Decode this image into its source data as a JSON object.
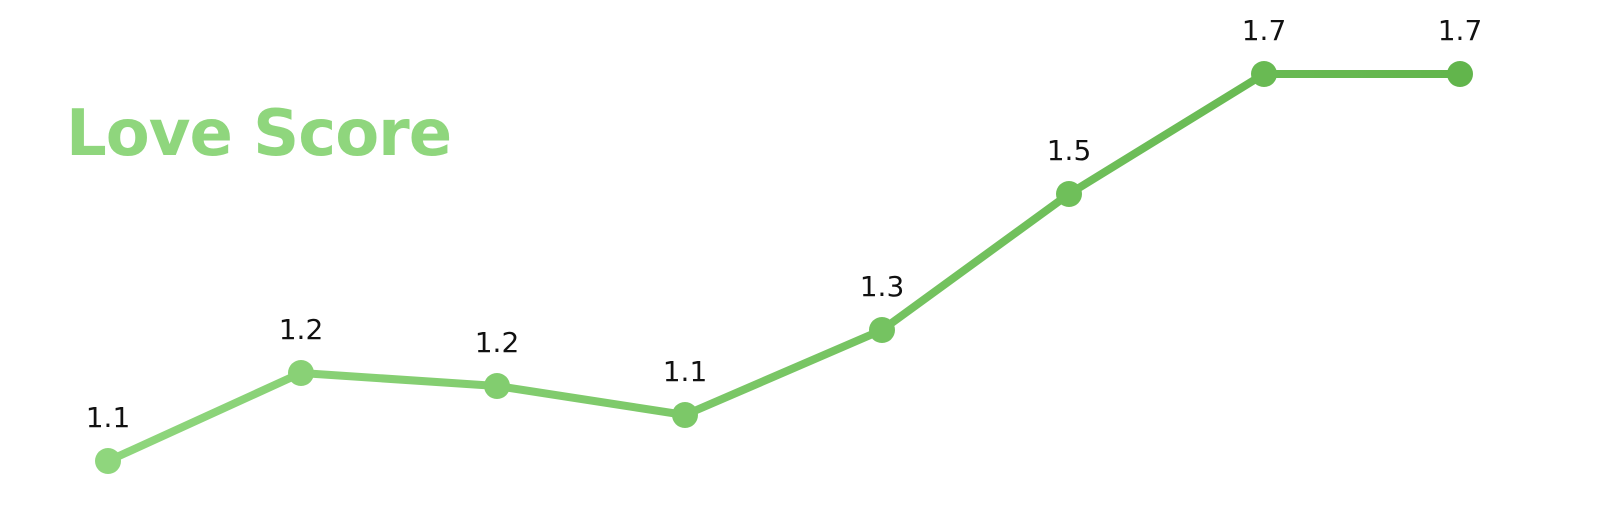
{
  "chart_data": {
    "type": "line",
    "title": "Love Score",
    "xlabel": "",
    "ylabel": "",
    "categories": [
      "",
      "",
      "",
      "",
      "",
      "",
      "",
      ""
    ],
    "series": [
      {
        "values": [
          1.1,
          1.2,
          1.2,
          1.1,
          1.3,
          1.5,
          1.7,
          1.7
        ],
        "labels": [
          "1.1",
          "1.2",
          "1.2",
          "1.1",
          "1.3",
          "1.5",
          "1.7",
          "1.7"
        ]
      }
    ],
    "data_labels": true,
    "grid": false,
    "axes_visible": false,
    "legend": "none",
    "colors": {
      "start": "#8fd67d",
      "end": "#62b54c",
      "title": "#8fd67d",
      "label": "#111111"
    }
  }
}
